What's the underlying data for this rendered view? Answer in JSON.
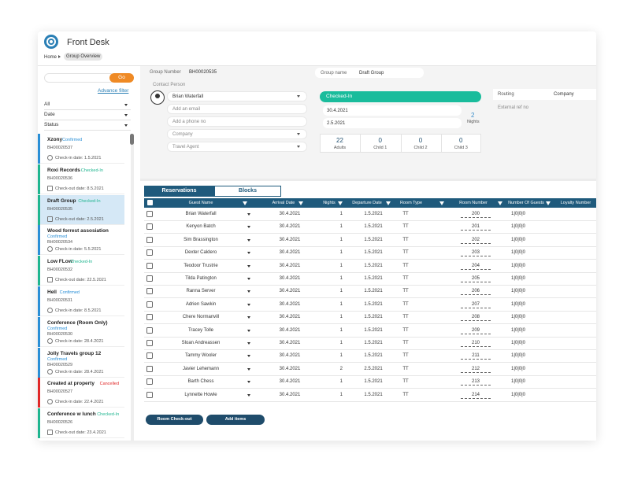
{
  "header": {
    "title": "Front Desk",
    "breadcrumb": [
      "Home",
      "Group Overview"
    ]
  },
  "sidebar": {
    "go": "Go",
    "advanced_filter": "Advance filter",
    "filters": [
      "All",
      "Date",
      "Status"
    ],
    "groups": [
      {
        "name": "Xzony",
        "status": "Confirmed",
        "number": "BH00020537",
        "date": "Check-in date: 1.5.2021"
      },
      {
        "name": "Roxi Records",
        "status": "Checked-In",
        "number": "BH00020536",
        "date": "Check-out date: 8.5.2021"
      },
      {
        "name": "Draft Group",
        "status": "Checked-In",
        "number": "BH00020535",
        "date": "Check-out date: 2.5.2021"
      },
      {
        "name": "Wood forrest assosiation",
        "status": "Confirmed",
        "number": "BH00020534",
        "date": "Check-in date: 5.5.2021"
      },
      {
        "name": "Low FLow",
        "status": "Checked-In",
        "number": "BH00020532",
        "date": "Check-out date: 22.5.2021"
      },
      {
        "name": "Hell",
        "status": "Confirmed",
        "number": "BH00020531",
        "date": "Check-in date: 8.5.2021"
      },
      {
        "name": "Conference (Room Only)",
        "status": "Confirmed",
        "number": "BH00020530",
        "date": "Check-in date: 28.4.2021"
      },
      {
        "name": "Jolly Travels group 12",
        "status": "Confirmed",
        "number": "BH00020529",
        "date": "Check-in date: 28.4.2021"
      },
      {
        "name": "Created at property",
        "status": "Cancelled",
        "number": "BH00020527",
        "date": "Check-in date: 22.4.2021"
      },
      {
        "name": "Conference w lunch",
        "status": "Checked-In",
        "number": "BH00020526",
        "date": "Check-out date: 23.4.2021"
      }
    ]
  },
  "details": {
    "group_number_label": "Group Number",
    "group_number": "BH00020535",
    "group_name_label": "Group name",
    "group_name": "Draft Group",
    "contact_person_label": "Contact Person",
    "contact_fields": [
      "Brian Waterfall",
      "Add an email",
      "Add a phone no",
      "Company",
      "Travel Agent"
    ],
    "status": "Checked-In",
    "dates": [
      "30.4.2021",
      "2.5.2021"
    ],
    "nights": 2,
    "nights_label": "Nights",
    "counts": [
      {
        "value": 22,
        "label": "Adults"
      },
      {
        "value": 0,
        "label": "Child 1"
      },
      {
        "value": 0,
        "label": "Child 2"
      },
      {
        "value": 0,
        "label": "Child 3"
      }
    ],
    "routing_label": "Routing",
    "routing_value": "Company",
    "external_ref_label": "External ref no"
  },
  "table": {
    "tabs": [
      "Reservations",
      "Blocks"
    ],
    "columns": [
      "Guest Name",
      "Arrival Date",
      "Nights",
      "Departure Date",
      "Room Type",
      "Room Number",
      "Number Of Guests",
      "Loyalty Number"
    ],
    "rows": [
      [
        "Brian Waterfall",
        "30.4.2021",
        1,
        "1.5.2021",
        "TT",
        200,
        "1|0|0|0"
      ],
      [
        "Kenyon Batch",
        "30.4.2021",
        1,
        "1.5.2021",
        "TT",
        201,
        "1|0|0|0"
      ],
      [
        "Sim Brassington",
        "30.4.2021",
        1,
        "1.5.2021",
        "TT",
        202,
        "1|0|0|0"
      ],
      [
        "Dexter Caldero",
        "30.4.2021",
        1,
        "1.5.2021",
        "TT",
        203,
        "1|0|0|0"
      ],
      [
        "Teodoor Trustrie",
        "30.4.2021",
        1,
        "1.5.2021",
        "TT",
        204,
        "1|0|0|0"
      ],
      [
        "Tilda Patington",
        "30.4.2021",
        1,
        "1.5.2021",
        "TT",
        205,
        "1|0|0|0"
      ],
      [
        "Ranna Server",
        "30.4.2021",
        1,
        "1.5.2021",
        "TT",
        206,
        "1|0|0|0"
      ],
      [
        "Adrien Sawkin",
        "30.4.2021",
        1,
        "1.5.2021",
        "TT",
        207,
        "1|0|0|0"
      ],
      [
        "Chere Normanvill",
        "30.4.2021",
        1,
        "1.5.2021",
        "TT",
        208,
        "1|0|0|0"
      ],
      [
        "Tracey Tolle",
        "30.4.2021",
        1,
        "1.5.2021",
        "TT",
        209,
        "1|0|0|0"
      ],
      [
        "Sloan Andreassen",
        "30.4.2021",
        1,
        "1.5.2021",
        "TT",
        210,
        "1|0|0|0"
      ],
      [
        "Tammy Wooler",
        "30.4.2021",
        1,
        "1.5.2021",
        "TT",
        211,
        "1|0|0|0"
      ],
      [
        "Javier Lehemann",
        "30.4.2021",
        2,
        "2.5.2021",
        "TT",
        212,
        "1|0|0|0"
      ],
      [
        "Barth Chess",
        "30.4.2021",
        1,
        "1.5.2021",
        "TT",
        213,
        "1|0|0|0"
      ],
      [
        "Lynnette Howle",
        "30.4.2021",
        1,
        "1.5.2021",
        "TT",
        214,
        "1|0|0|0"
      ]
    ]
  },
  "buttons": [
    "Room Check-out",
    "Add items"
  ]
}
